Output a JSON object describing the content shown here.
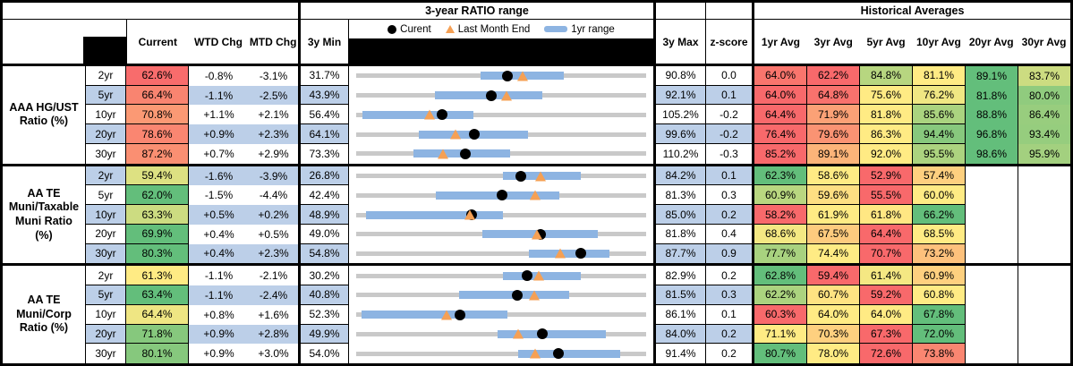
{
  "titles": {
    "range_title": "3-year RATIO range",
    "hist_title": "Historical Averages"
  },
  "headers": {
    "current": "Current",
    "wtd": "WTD Chg",
    "mtd": "MTD Chg",
    "min3y": "3y Min",
    "max3y": "3y Max",
    "zscore": "z-score",
    "avg_headers": [
      "1yr Avg",
      "3yr Avg",
      "5yr Avg",
      "10yr Avg",
      "20yr Avg",
      "30yr Avg"
    ]
  },
  "legend": {
    "current": "Curent",
    "last_month": "Last Month End",
    "range_1yr": "1yr range"
  },
  "colors": {
    "band_blue": "#BCCFE8",
    "bar_blue": "#8DB4E2",
    "track_gray": "#C9C9C9",
    "marker_black": "#000000",
    "triangle_orange": "#F5A054",
    "scale_red": "#F8696B",
    "scale_yellow": "#FFEB84",
    "scale_green": "#63BE7B"
  },
  "groups": [
    {
      "label": "AAA HG/UST Ratio (%)",
      "label_lines": [
        "AAA HG/UST",
        "Ratio (%)"
      ],
      "rows": [
        {
          "tenor": "2yr",
          "current": "62.6%",
          "wtd": "-0.8%",
          "mtd": "-3.1%",
          "min": "31.7%",
          "max": "90.8%",
          "z": "0.0",
          "avgs": [
            "64.0%",
            "62.2%",
            "84.8%",
            "81.1%",
            "89.1%",
            "83.7%"
          ],
          "bar": [
            57.0,
            74.0
          ],
          "last_month": 65.7,
          "banded": false
        },
        {
          "tenor": "5yr",
          "current": "66.4%",
          "wtd": "-1.1%",
          "mtd": "-2.5%",
          "min": "43.9%",
          "max": "92.1%",
          "z": "0.1",
          "avgs": [
            "64.0%",
            "64.8%",
            "75.6%",
            "76.2%",
            "81.8%",
            "80.0%"
          ],
          "bar": [
            57.0,
            74.8
          ],
          "last_month": 68.9,
          "banded": true
        },
        {
          "tenor": "10yr",
          "current": "70.8%",
          "wtd": "+1.1%",
          "mtd": "+2.1%",
          "min": "56.4%",
          "max": "105.2%",
          "z": "-0.2",
          "avgs": [
            "64.4%",
            "71.9%",
            "81.8%",
            "85.6%",
            "88.8%",
            "86.4%"
          ],
          "bar": [
            57.4,
            76.2
          ],
          "last_month": 68.7,
          "banded": false
        },
        {
          "tenor": "20yr",
          "current": "78.6%",
          "wtd": "+0.9%",
          "mtd": "+2.3%",
          "min": "64.1%",
          "max": "99.6%",
          "z": "-0.2",
          "avgs": [
            "76.4%",
            "79.6%",
            "86.3%",
            "94.4%",
            "96.8%",
            "93.4%"
          ],
          "bar": [
            71.8,
            85.1
          ],
          "last_month": 76.3,
          "banded": true
        },
        {
          "tenor": "30yr",
          "current": "87.2%",
          "wtd": "+0.7%",
          "mtd": "+2.9%",
          "min": "73.3%",
          "max": "110.2%",
          "z": "-0.3",
          "avgs": [
            "85.2%",
            "89.1%",
            "92.0%",
            "95.5%",
            "98.6%",
            "95.9%"
          ],
          "bar": [
            80.6,
            92.9
          ],
          "last_month": 84.3,
          "banded": false
        }
      ]
    },
    {
      "label": "AA TE Muni/Taxable Muni Ratio (%)",
      "label_lines": [
        "AA TE",
        "Muni/Taxable",
        "Muni Ratio",
        "(%)"
      ],
      "rows": [
        {
          "tenor": "2yr",
          "current": "59.4%",
          "wtd": "-1.6%",
          "mtd": "-3.9%",
          "min": "26.8%",
          "max": "84.2%",
          "z": "0.1",
          "avgs": [
            "62.3%",
            "58.6%",
            "52.9%",
            "57.4%",
            null,
            null
          ],
          "bar": [
            55.8,
            71.2
          ],
          "last_month": 63.3,
          "banded": true
        },
        {
          "tenor": "5yr",
          "current": "62.0%",
          "wtd": "-1.5%",
          "mtd": "-4.4%",
          "min": "42.4%",
          "max": "81.3%",
          "z": "0.3",
          "avgs": [
            "60.9%",
            "59.6%",
            "55.5%",
            "60.0%",
            null,
            null
          ],
          "bar": [
            53.1,
            69.7
          ],
          "last_month": 66.4,
          "banded": false
        },
        {
          "tenor": "10yr",
          "current": "63.3%",
          "wtd": "+0.5%",
          "mtd": "+0.2%",
          "min": "48.9%",
          "max": "85.0%",
          "z": "0.2",
          "avgs": [
            "58.2%",
            "61.9%",
            "61.8%",
            "66.2%",
            null,
            null
          ],
          "bar": [
            50.1,
            67.2
          ],
          "last_month": 63.1,
          "banded": true
        },
        {
          "tenor": "20yr",
          "current": "69.9%",
          "wtd": "+0.4%",
          "mtd": "+0.5%",
          "min": "49.0%",
          "max": "81.8%",
          "z": "0.4",
          "avgs": [
            "68.6%",
            "67.5%",
            "64.4%",
            "68.5%",
            null,
            null
          ],
          "bar": [
            63.3,
            76.3
          ],
          "last_month": 69.4,
          "banded": false
        },
        {
          "tenor": "30yr",
          "current": "80.3%",
          "wtd": "+0.4%",
          "mtd": "+2.3%",
          "min": "54.8%",
          "max": "87.7%",
          "z": "0.9",
          "avgs": [
            "77.7%",
            "74.4%",
            "70.7%",
            "73.2%",
            null,
            null
          ],
          "bar": [
            74.4,
            83.5
          ],
          "last_month": 78.0,
          "banded": true
        }
      ]
    },
    {
      "label": "AA TE Muni/Corp Ratio (%)",
      "label_lines": [
        "AA TE",
        "Muni/Corp",
        "Ratio (%)"
      ],
      "rows": [
        {
          "tenor": "2yr",
          "current": "61.3%",
          "wtd": "-1.1%",
          "mtd": "-2.1%",
          "min": "30.2%",
          "max": "82.9%",
          "z": "0.2",
          "avgs": [
            "62.8%",
            "59.4%",
            "61.4%",
            "60.9%",
            null,
            null
          ],
          "bar": [
            56.9,
            71.1
          ],
          "last_month": 63.4,
          "banded": false
        },
        {
          "tenor": "5yr",
          "current": "63.4%",
          "wtd": "-1.1%",
          "mtd": "-2.4%",
          "min": "40.8%",
          "max": "81.5%",
          "z": "0.3",
          "avgs": [
            "62.2%",
            "60.7%",
            "59.2%",
            "60.8%",
            null,
            null
          ],
          "bar": [
            55.3,
            70.7
          ],
          "last_month": 65.8,
          "banded": true
        },
        {
          "tenor": "10yr",
          "current": "64.4%",
          "wtd": "+0.8%",
          "mtd": "+1.6%",
          "min": "52.3%",
          "max": "86.1%",
          "z": "0.1",
          "avgs": [
            "60.3%",
            "64.0%",
            "64.0%",
            "67.8%",
            null,
            null
          ],
          "bar": [
            52.9,
            69.9
          ],
          "last_month": 62.8,
          "banded": false
        },
        {
          "tenor": "20yr",
          "current": "71.8%",
          "wtd": "+0.9%",
          "mtd": "+2.8%",
          "min": "49.9%",
          "max": "84.0%",
          "z": "0.2",
          "avgs": [
            "71.1%",
            "70.3%",
            "67.3%",
            "72.0%",
            null,
            null
          ],
          "bar": [
            66.5,
            79.3
          ],
          "last_month": 69.0,
          "banded": true
        },
        {
          "tenor": "30yr",
          "current": "80.1%",
          "wtd": "+0.9%",
          "mtd": "+3.0%",
          "min": "54.0%",
          "max": "91.4%",
          "z": "0.2",
          "avgs": [
            "80.7%",
            "78.0%",
            "72.6%",
            "73.8%",
            null,
            null
          ],
          "bar": [
            74.9,
            88.1
          ],
          "last_month": 77.1,
          "banded": false
        }
      ]
    }
  ],
  "chart_data": {
    "type": "table",
    "title": "3-year RATIO range",
    "legend": [
      "Curent",
      "Last Month End",
      "1yr range"
    ],
    "note": "Each row is a horizontal range plot scaled from 3y Min to 3y Max; blue bar = 1yr range (estimated), black dot = Current, orange triangle = Last Month End (Current minus MTD Chg).",
    "rows": [
      {
        "label": "AAA HG/UST 2yr",
        "min3y": 31.7,
        "max3y": 90.8,
        "range1yr": [
          57.0,
          74.0
        ],
        "current": 62.6,
        "last_month_end": 65.7
      },
      {
        "label": "AAA HG/UST 5yr",
        "min3y": 43.9,
        "max3y": 92.1,
        "range1yr": [
          57.0,
          74.8
        ],
        "current": 66.4,
        "last_month_end": 68.9
      },
      {
        "label": "AAA HG/UST 10yr",
        "min3y": 56.4,
        "max3y": 105.2,
        "range1yr": [
          57.4,
          76.2
        ],
        "current": 70.8,
        "last_month_end": 68.7
      },
      {
        "label": "AAA HG/UST 20yr",
        "min3y": 64.1,
        "max3y": 99.6,
        "range1yr": [
          71.8,
          85.1
        ],
        "current": 78.6,
        "last_month_end": 76.3
      },
      {
        "label": "AAA HG/UST 30yr",
        "min3y": 73.3,
        "max3y": 110.2,
        "range1yr": [
          80.6,
          92.9
        ],
        "current": 87.2,
        "last_month_end": 84.3
      },
      {
        "label": "AA TE Muni/Taxable 2yr",
        "min3y": 26.8,
        "max3y": 84.2,
        "range1yr": [
          55.8,
          71.2
        ],
        "current": 59.4,
        "last_month_end": 63.3
      },
      {
        "label": "AA TE Muni/Taxable 5yr",
        "min3y": 42.4,
        "max3y": 81.3,
        "range1yr": [
          53.1,
          69.7
        ],
        "current": 62.0,
        "last_month_end": 66.4
      },
      {
        "label": "AA TE Muni/Taxable 10yr",
        "min3y": 48.9,
        "max3y": 85.0,
        "range1yr": [
          50.1,
          67.2
        ],
        "current": 63.3,
        "last_month_end": 63.1
      },
      {
        "label": "AA TE Muni/Taxable 20yr",
        "min3y": 49.0,
        "max3y": 81.8,
        "range1yr": [
          63.3,
          76.3
        ],
        "current": 69.9,
        "last_month_end": 69.4
      },
      {
        "label": "AA TE Muni/Taxable 30yr",
        "min3y": 54.8,
        "max3y": 87.7,
        "range1yr": [
          74.4,
          83.5
        ],
        "current": 80.3,
        "last_month_end": 78.0
      },
      {
        "label": "AA TE Muni/Corp 2yr",
        "min3y": 30.2,
        "max3y": 82.9,
        "range1yr": [
          56.9,
          71.1
        ],
        "current": 61.3,
        "last_month_end": 63.4
      },
      {
        "label": "AA TE Muni/Corp 5yr",
        "min3y": 40.8,
        "max3y": 81.5,
        "range1yr": [
          55.3,
          70.7
        ],
        "current": 63.4,
        "last_month_end": 65.8
      },
      {
        "label": "AA TE Muni/Corp 10yr",
        "min3y": 52.3,
        "max3y": 86.1,
        "range1yr": [
          52.9,
          69.9
        ],
        "current": 64.4,
        "last_month_end": 62.8
      },
      {
        "label": "AA TE Muni/Corp 20yr",
        "min3y": 49.9,
        "max3y": 84.0,
        "range1yr": [
          66.5,
          79.3
        ],
        "current": 71.8,
        "last_month_end": 69.0
      },
      {
        "label": "AA TE Muni/Corp 30yr",
        "min3y": 54.0,
        "max3y": 91.4,
        "range1yr": [
          74.9,
          88.1
        ],
        "current": 80.1,
        "last_month_end": 77.1
      }
    ]
  }
}
